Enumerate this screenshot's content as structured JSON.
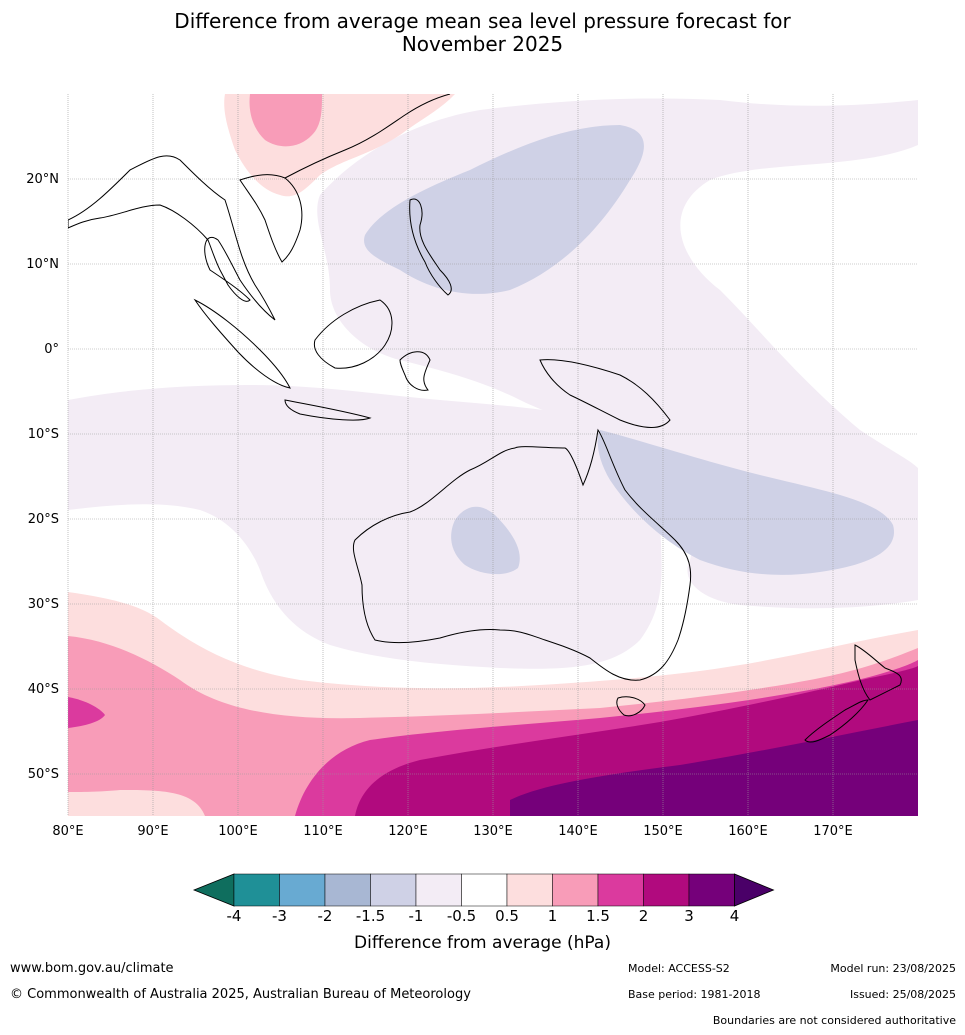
{
  "title_line1": "Difference from average mean sea level pressure forecast for",
  "title_line2": "November 2025",
  "map": {
    "lon_labels": [
      "80°E",
      "90°E",
      "100°E",
      "110°E",
      "120°E",
      "130°E",
      "140°E",
      "150°E",
      "160°E",
      "170°E"
    ],
    "lat_labels": [
      "20°N",
      "10°N",
      "0°",
      "10°S",
      "20°S",
      "30°S",
      "40°S",
      "50°S"
    ]
  },
  "colorbar": {
    "title": "Difference from average (hPa)",
    "tick_labels": [
      "-4",
      "-3",
      "-2",
      "-1.5",
      "-1",
      "-0.5",
      "0.5",
      "1",
      "1.5",
      "2",
      "3",
      "4"
    ],
    "colors": [
      "#0f6e5e",
      "#1f9097",
      "#68aad2",
      "#a8b7d3",
      "#cfd1e6",
      "#f3ecf5",
      "#ffffff",
      "#fddede",
      "#f89cb8",
      "#db3a9e",
      "#b10a7e",
      "#75007a",
      "#4a0068"
    ]
  },
  "footer": {
    "website": "www.bom.gov.au/climate",
    "copyright": "© Commonwealth of Australia 2025, Australian Bureau of Meteorology",
    "model": "Model: ACCESS-S2",
    "base_period": "Base period: 1981-2018",
    "model_run": "Model run: 23/08/2025",
    "issued": "Issued: 25/08/2025",
    "disclaimer": "Boundaries are not considered authoritative"
  }
}
